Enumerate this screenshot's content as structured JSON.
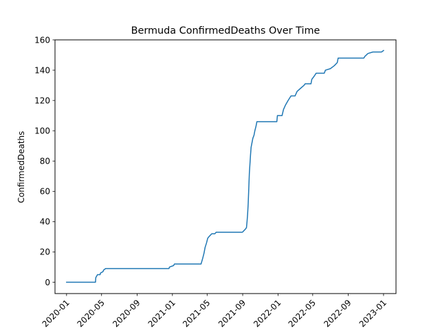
{
  "chart_data": {
    "type": "line",
    "title": "Bermuda  ConfirmedDeaths Over Time",
    "xlabel": "",
    "ylabel": "ConfirmedDeaths",
    "xlim": [
      "2019-11-22",
      "2023-02-13"
    ],
    "ylim": [
      -7.5,
      160
    ],
    "x_ticks": [
      "2020-01",
      "2020-05",
      "2020-09",
      "2021-01",
      "2021-05",
      "2021-09",
      "2022-01",
      "2022-05",
      "2022-09",
      "2023-01"
    ],
    "y_ticks": [
      0,
      20,
      40,
      60,
      80,
      100,
      120,
      140,
      160
    ],
    "grid": false,
    "series": [
      {
        "color": "#1f77b4",
        "points": [
          [
            "2020-01-01",
            0
          ],
          [
            "2020-04-10",
            0
          ],
          [
            "2020-04-11",
            3
          ],
          [
            "2020-04-14",
            4
          ],
          [
            "2020-04-17",
            5
          ],
          [
            "2020-04-26",
            5
          ],
          [
            "2020-04-27",
            6
          ],
          [
            "2020-05-06",
            7
          ],
          [
            "2020-05-08",
            8
          ],
          [
            "2020-05-15",
            9
          ],
          [
            "2020-12-20",
            9
          ],
          [
            "2020-12-22",
            10
          ],
          [
            "2021-01-05",
            11
          ],
          [
            "2021-01-08",
            12
          ],
          [
            "2021-04-10",
            12
          ],
          [
            "2021-04-13",
            14
          ],
          [
            "2021-04-16",
            16
          ],
          [
            "2021-04-20",
            19
          ],
          [
            "2021-04-24",
            23
          ],
          [
            "2021-04-29",
            26
          ],
          [
            "2021-05-03",
            29
          ],
          [
            "2021-05-07",
            30
          ],
          [
            "2021-05-12",
            31
          ],
          [
            "2021-05-17",
            32
          ],
          [
            "2021-05-28",
            32
          ],
          [
            "2021-06-01",
            33
          ],
          [
            "2021-08-31",
            33
          ],
          [
            "2021-09-05",
            34
          ],
          [
            "2021-09-10",
            35
          ],
          [
            "2021-09-14",
            36
          ],
          [
            "2021-09-16",
            40
          ],
          [
            "2021-09-18",
            45
          ],
          [
            "2021-09-20",
            52
          ],
          [
            "2021-09-22",
            62
          ],
          [
            "2021-09-24",
            72
          ],
          [
            "2021-09-26",
            78
          ],
          [
            "2021-09-28",
            84
          ],
          [
            "2021-09-30",
            89
          ],
          [
            "2021-10-03",
            92
          ],
          [
            "2021-10-06",
            95
          ],
          [
            "2021-10-10",
            97
          ],
          [
            "2021-10-13",
            100
          ],
          [
            "2021-10-17",
            103
          ],
          [
            "2021-10-20",
            106
          ],
          [
            "2021-12-28",
            106
          ],
          [
            "2021-12-30",
            110
          ],
          [
            "2022-01-15",
            110
          ],
          [
            "2022-01-20",
            114
          ],
          [
            "2022-01-27",
            117
          ],
          [
            "2022-02-05",
            120
          ],
          [
            "2022-02-15",
            123
          ],
          [
            "2022-03-01",
            123
          ],
          [
            "2022-03-08",
            126
          ],
          [
            "2022-03-20",
            128
          ],
          [
            "2022-04-01",
            130
          ],
          [
            "2022-04-05",
            131
          ],
          [
            "2022-04-25",
            131
          ],
          [
            "2022-04-28",
            134
          ],
          [
            "2022-05-06",
            136
          ],
          [
            "2022-05-13",
            138
          ],
          [
            "2022-06-10",
            138
          ],
          [
            "2022-06-14",
            140
          ],
          [
            "2022-07-01",
            141
          ],
          [
            "2022-07-15",
            143
          ],
          [
            "2022-07-25",
            145
          ],
          [
            "2022-07-28",
            148
          ],
          [
            "2022-10-25",
            148
          ],
          [
            "2022-10-28",
            149
          ],
          [
            "2022-11-08",
            151
          ],
          [
            "2022-11-25",
            152
          ],
          [
            "2022-12-25",
            152
          ],
          [
            "2023-01-01",
            153
          ]
        ]
      }
    ]
  }
}
